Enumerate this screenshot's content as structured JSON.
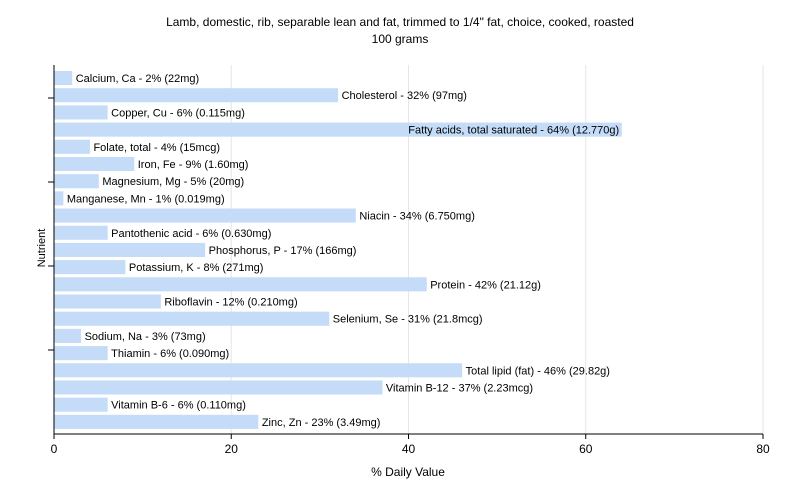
{
  "chart_data": {
    "type": "bar",
    "orientation": "horizontal",
    "title": "Lamb, domestic, rib, separable lean and fat, trimmed to 1/4\" fat, choice, cooked, roasted",
    "subtitle": "100 grams",
    "xlabel": "% Daily Value",
    "ylabel": "Nutrient",
    "xlim": [
      0,
      80
    ],
    "xticks": [
      "0",
      "20",
      "40",
      "60",
      "80"
    ],
    "grid": true,
    "bar_color": "#c4dcf8",
    "categories": [
      "Calcium, Ca",
      "Cholesterol",
      "Copper, Cu",
      "Fatty acids, total saturated",
      "Folate, total",
      "Iron, Fe",
      "Magnesium, Mg",
      "Manganese, Mn",
      "Niacin",
      "Pantothenic acid",
      "Phosphorus, P",
      "Potassium, K",
      "Protein",
      "Riboflavin",
      "Selenium, Se",
      "Sodium, Na",
      "Thiamin",
      "Total lipid (fat)",
      "Vitamin B-12",
      "Vitamin B-6",
      "Zinc, Zn"
    ],
    "values": [
      2,
      32,
      6,
      64,
      4,
      9,
      5,
      1,
      34,
      6,
      17,
      8,
      42,
      12,
      31,
      3,
      6,
      46,
      37,
      6,
      23
    ],
    "labels": [
      "Calcium, Ca - 2% (22mg)",
      "Cholesterol - 32% (97mg)",
      "Copper, Cu - 6% (0.115mg)",
      "Fatty acids, total saturated - 64% (12.770g)",
      "Folate, total - 4% (15mcg)",
      "Iron, Fe - 9% (1.60mg)",
      "Magnesium, Mg - 5% (20mg)",
      "Manganese, Mn - 1% (0.019mg)",
      "Niacin - 34% (6.750mg)",
      "Pantothenic acid - 6% (0.630mg)",
      "Phosphorus, P - 17% (166mg)",
      "Potassium, K - 8% (271mg)",
      "Protein - 42% (21.12g)",
      "Riboflavin - 12% (0.210mg)",
      "Selenium, Se - 31% (21.8mcg)",
      "Sodium, Na - 3% (73mg)",
      "Thiamin - 6% (0.090mg)",
      "Total lipid (fat) - 46% (29.82g)",
      "Vitamin B-12 - 37% (2.23mcg)",
      "Vitamin B-6 - 6% (0.110mg)",
      "Zinc, Zn - 23% (3.49mg)"
    ]
  }
}
